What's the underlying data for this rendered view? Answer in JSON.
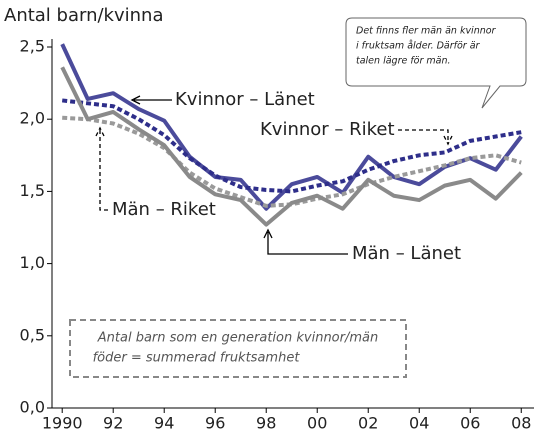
{
  "chart_data": {
    "type": "line",
    "ylabel": "Antal barn/kvinna",
    "x": [
      1990,
      1991,
      1992,
      1993,
      1994,
      1995,
      1996,
      1997,
      1998,
      1999,
      2000,
      2001,
      2002,
      2003,
      2004,
      2005,
      2006,
      2007,
      2008
    ],
    "series": [
      {
        "name": "Kvinnor – Länet",
        "color": "#4b4b9b",
        "style": "solid",
        "values": [
          2.52,
          2.14,
          2.18,
          2.07,
          1.99,
          1.74,
          1.6,
          1.58,
          1.38,
          1.55,
          1.6,
          1.49,
          1.74,
          1.6,
          1.55,
          1.67,
          1.73,
          1.65,
          1.88
        ]
      },
      {
        "name": "Kvinnor – Riket",
        "color": "#2e2e8a",
        "style": "dotted",
        "values": [
          2.13,
          2.11,
          2.09,
          2.0,
          1.89,
          1.73,
          1.61,
          1.53,
          1.51,
          1.5,
          1.54,
          1.57,
          1.65,
          1.71,
          1.75,
          1.77,
          1.85,
          1.88,
          1.91
        ]
      },
      {
        "name": "Män – Riket",
        "color": "#9a9a9a",
        "style": "dotted",
        "values": [
          2.01,
          2.0,
          1.97,
          1.9,
          1.8,
          1.63,
          1.52,
          1.46,
          1.4,
          1.41,
          1.45,
          1.48,
          1.55,
          1.6,
          1.64,
          1.68,
          1.73,
          1.75,
          1.7
        ]
      },
      {
        "name": "Män – Länet",
        "color": "#8a8a8a",
        "style": "solid",
        "values": [
          2.36,
          2.0,
          2.05,
          1.93,
          1.82,
          1.6,
          1.48,
          1.44,
          1.27,
          1.42,
          1.47,
          1.38,
          1.58,
          1.47,
          1.44,
          1.54,
          1.58,
          1.45,
          1.63
        ]
      }
    ],
    "xlim": [
      1989.6,
      2008.5
    ],
    "xticks": [
      1990,
      {
        "value": 1992,
        "label": "92"
      },
      {
        "value": 1994,
        "label": "94"
      },
      {
        "value": 1996,
        "label": "96"
      },
      {
        "value": 1998,
        "label": "98"
      },
      {
        "value": 2000,
        "label": "00"
      },
      {
        "value": 2002,
        "label": "02"
      },
      {
        "value": 2004,
        "label": "04"
      },
      {
        "value": 2006,
        "label": "06"
      },
      {
        "value": 2008,
        "label": "08"
      }
    ],
    "ylim": [
      0,
      2.5
    ],
    "yticks": [
      {
        "value": 0,
        "label": "0,0"
      },
      {
        "value": 0.5,
        "label": "0,5"
      },
      {
        "value": 1,
        "label": "1,0"
      },
      {
        "value": 1.5,
        "label": "1,5"
      },
      {
        "value": 2,
        "label": "2,0"
      },
      {
        "value": 2.5,
        "label": "2,5"
      }
    ],
    "grid": false,
    "annotations": {
      "callout": [
        "Det finns fler män än kvinnor",
        "i fruktsam ålder. Därför är",
        "talen lägre för män."
      ],
      "note": [
        "Antal barn som en generation kvinnor/män",
        "föder = summerad fruktsamhet"
      ]
    }
  }
}
